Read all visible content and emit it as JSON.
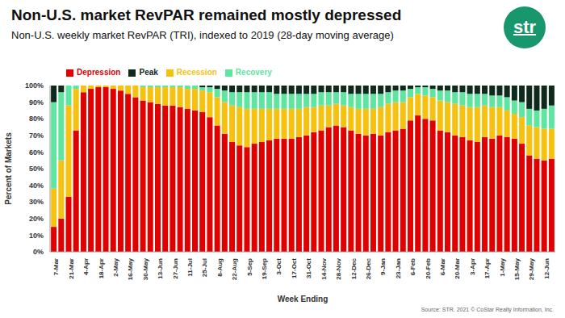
{
  "chart_data": {
    "type": "bar",
    "stacked": true,
    "grid": false,
    "legend": "top",
    "title": "Non-U.S. market RevPAR remained mostly depressed",
    "subtitle": "Non-U.S. weekly market RevPAR (TRI), indexed to 2019 (28-day moving average)",
    "logo": "str",
    "source": "Source: STR. 2021 © CoStar Realty Information, Inc.",
    "x_label": "Week Ending",
    "y_label": "Percent of Markets",
    "ylim": [
      0,
      100
    ],
    "yticks": [
      {
        "value": 0,
        "label": "0%"
      },
      {
        "value": 10,
        "label": "10%"
      },
      {
        "value": 20,
        "label": "20%"
      },
      {
        "value": 30,
        "label": "30%"
      },
      {
        "value": 40,
        "label": "40%"
      },
      {
        "value": 50,
        "label": "50%"
      },
      {
        "value": 60,
        "label": "60%"
      },
      {
        "value": 70,
        "label": "70%"
      },
      {
        "value": 80,
        "label": "80%"
      },
      {
        "value": 90,
        "label": "90%"
      },
      {
        "value": 100,
        "label": "100%"
      }
    ],
    "categories": [
      "7-Mar",
      null,
      "21-Mar",
      null,
      "4-Apr",
      null,
      "18-Apr",
      null,
      "2-May",
      null,
      "16-May",
      null,
      "30-May",
      null,
      "13-Jun",
      null,
      "27-Jun",
      null,
      "11-Jul",
      null,
      "25-Jul",
      null,
      "8-Aug",
      null,
      "22-Aug",
      null,
      "5-Sep",
      null,
      "19-Sep",
      null,
      "3-Oct",
      null,
      "17-Oct",
      null,
      "31-Oct",
      null,
      "14-Nov",
      null,
      "28-Nov",
      null,
      "12-Dec",
      null,
      "26-Dec",
      null,
      "9-Jan",
      null,
      "23-Jan",
      null,
      "6-Feb",
      null,
      "20-Feb",
      null,
      "6-Mar",
      null,
      "20-Mar",
      null,
      "3-Apr",
      null,
      "17-Apr",
      null,
      "1-May",
      null,
      "15-May",
      null,
      "29-May",
      null,
      "12-Jun",
      null
    ],
    "series": [
      {
        "name": "Depression",
        "color": "#e00000",
        "values": [
          15,
          20,
          33,
          73,
          96,
          98,
          99,
          99,
          98,
          97,
          95,
          93,
          91,
          90,
          89,
          88,
          88,
          87,
          86,
          85,
          84,
          81,
          76,
          71,
          66,
          64,
          63,
          65,
          66,
          67,
          68,
          68,
          68,
          69,
          70,
          72,
          73,
          75,
          76,
          75,
          73,
          71,
          70,
          71,
          70,
          72,
          73,
          74,
          79,
          82,
          80,
          79,
          73,
          72,
          70,
          69,
          67,
          66,
          69,
          68,
          70,
          69,
          68,
          65,
          58,
          56,
          55,
          56
        ]
      },
      {
        "name": "Recession",
        "color": "#f6c20f",
        "values": [
          23,
          35,
          55,
          25,
          4,
          2,
          1,
          1,
          2,
          3,
          5,
          7,
          8,
          9,
          10,
          11,
          11,
          12,
          12,
          13,
          13,
          15,
          17,
          19,
          22,
          23,
          23,
          21,
          20,
          19,
          18,
          18,
          18,
          17,
          17,
          15,
          15,
          13,
          13,
          13,
          14,
          15,
          16,
          15,
          17,
          17,
          17,
          16,
          14,
          13,
          14,
          14,
          18,
          18,
          19,
          19,
          20,
          21,
          19,
          19,
          17,
          16,
          15,
          16,
          18,
          19,
          19,
          18
        ]
      },
      {
        "name": "Recovery",
        "color": "#5ee6a0",
        "values": [
          52,
          41,
          12,
          2,
          0,
          0,
          0,
          0,
          0,
          0,
          0,
          0,
          1,
          1,
          1,
          1,
          1,
          1,
          2,
          2,
          2,
          3,
          5,
          7,
          8,
          9,
          10,
          10,
          10,
          10,
          9,
          9,
          9,
          9,
          8,
          8,
          8,
          8,
          7,
          8,
          8,
          9,
          9,
          9,
          8,
          7,
          7,
          7,
          5,
          4,
          5,
          5,
          6,
          7,
          7,
          8,
          8,
          8,
          7,
          7,
          7,
          8,
          8,
          9,
          10,
          10,
          12,
          14
        ]
      },
      {
        "name": "Peak",
        "color": "#0e2a1c",
        "values": [
          10,
          4,
          0,
          0,
          0,
          0,
          0,
          0,
          0,
          0,
          0,
          0,
          0,
          0,
          0,
          0,
          0,
          0,
          0,
          0,
          1,
          1,
          2,
          3,
          4,
          4,
          4,
          4,
          4,
          4,
          5,
          5,
          5,
          5,
          5,
          5,
          4,
          4,
          4,
          4,
          5,
          5,
          5,
          5,
          5,
          4,
          3,
          3,
          2,
          1,
          1,
          2,
          3,
          3,
          4,
          4,
          5,
          5,
          5,
          6,
          6,
          7,
          9,
          10,
          14,
          15,
          14,
          12
        ]
      }
    ]
  }
}
